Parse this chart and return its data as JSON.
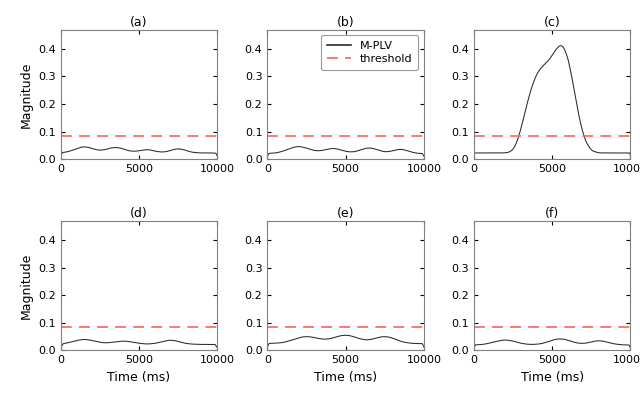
{
  "title_labels": [
    "(a)",
    "(b)",
    "(c)",
    "(d)",
    "(e)",
    "(f)"
  ],
  "threshold": 0.085,
  "threshold_color": "#FF6B6B",
  "line_color": "#2a2a2a",
  "ylim": [
    0,
    0.47
  ],
  "yticks": [
    0,
    0.1,
    0.2,
    0.3,
    0.4
  ],
  "xlim": [
    0,
    10000
  ],
  "xticks": [
    0,
    5000,
    10000
  ],
  "xlabel": "Time (ms)",
  "ylabel": "Magnitude",
  "legend_labels": [
    "M-PLV",
    "threshold"
  ],
  "background_color": "#ffffff",
  "fig_width": 6.4,
  "fig_height": 3.96,
  "dpi": 100,
  "spine_color": "#808080",
  "legend_panel": 1
}
